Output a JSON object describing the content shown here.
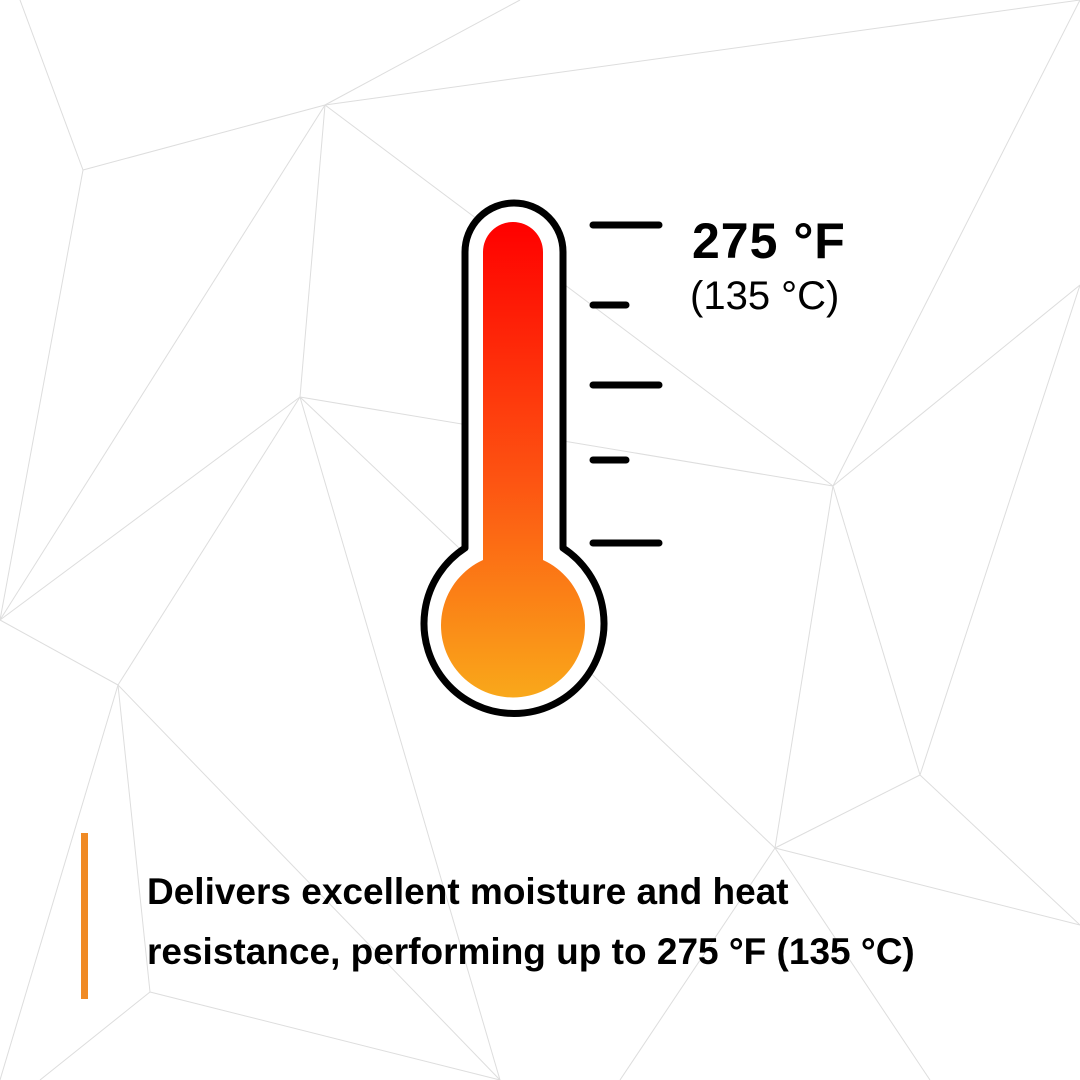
{
  "temperature": {
    "fahrenheit": "275 °F",
    "celsius": "(135 °C)"
  },
  "caption": {
    "lines": [
      "Delivers excellent moisture and heat",
      "resistance, performing up to 275 °F (135 °C)"
    ]
  },
  "icon": "thermometer-icon",
  "colors": {
    "accent": "#f08a24",
    "mercury_top": "#ff0000",
    "mercury_bottom": "#f9a81a",
    "outline": "#000000",
    "background_lines": "#dddddd"
  }
}
